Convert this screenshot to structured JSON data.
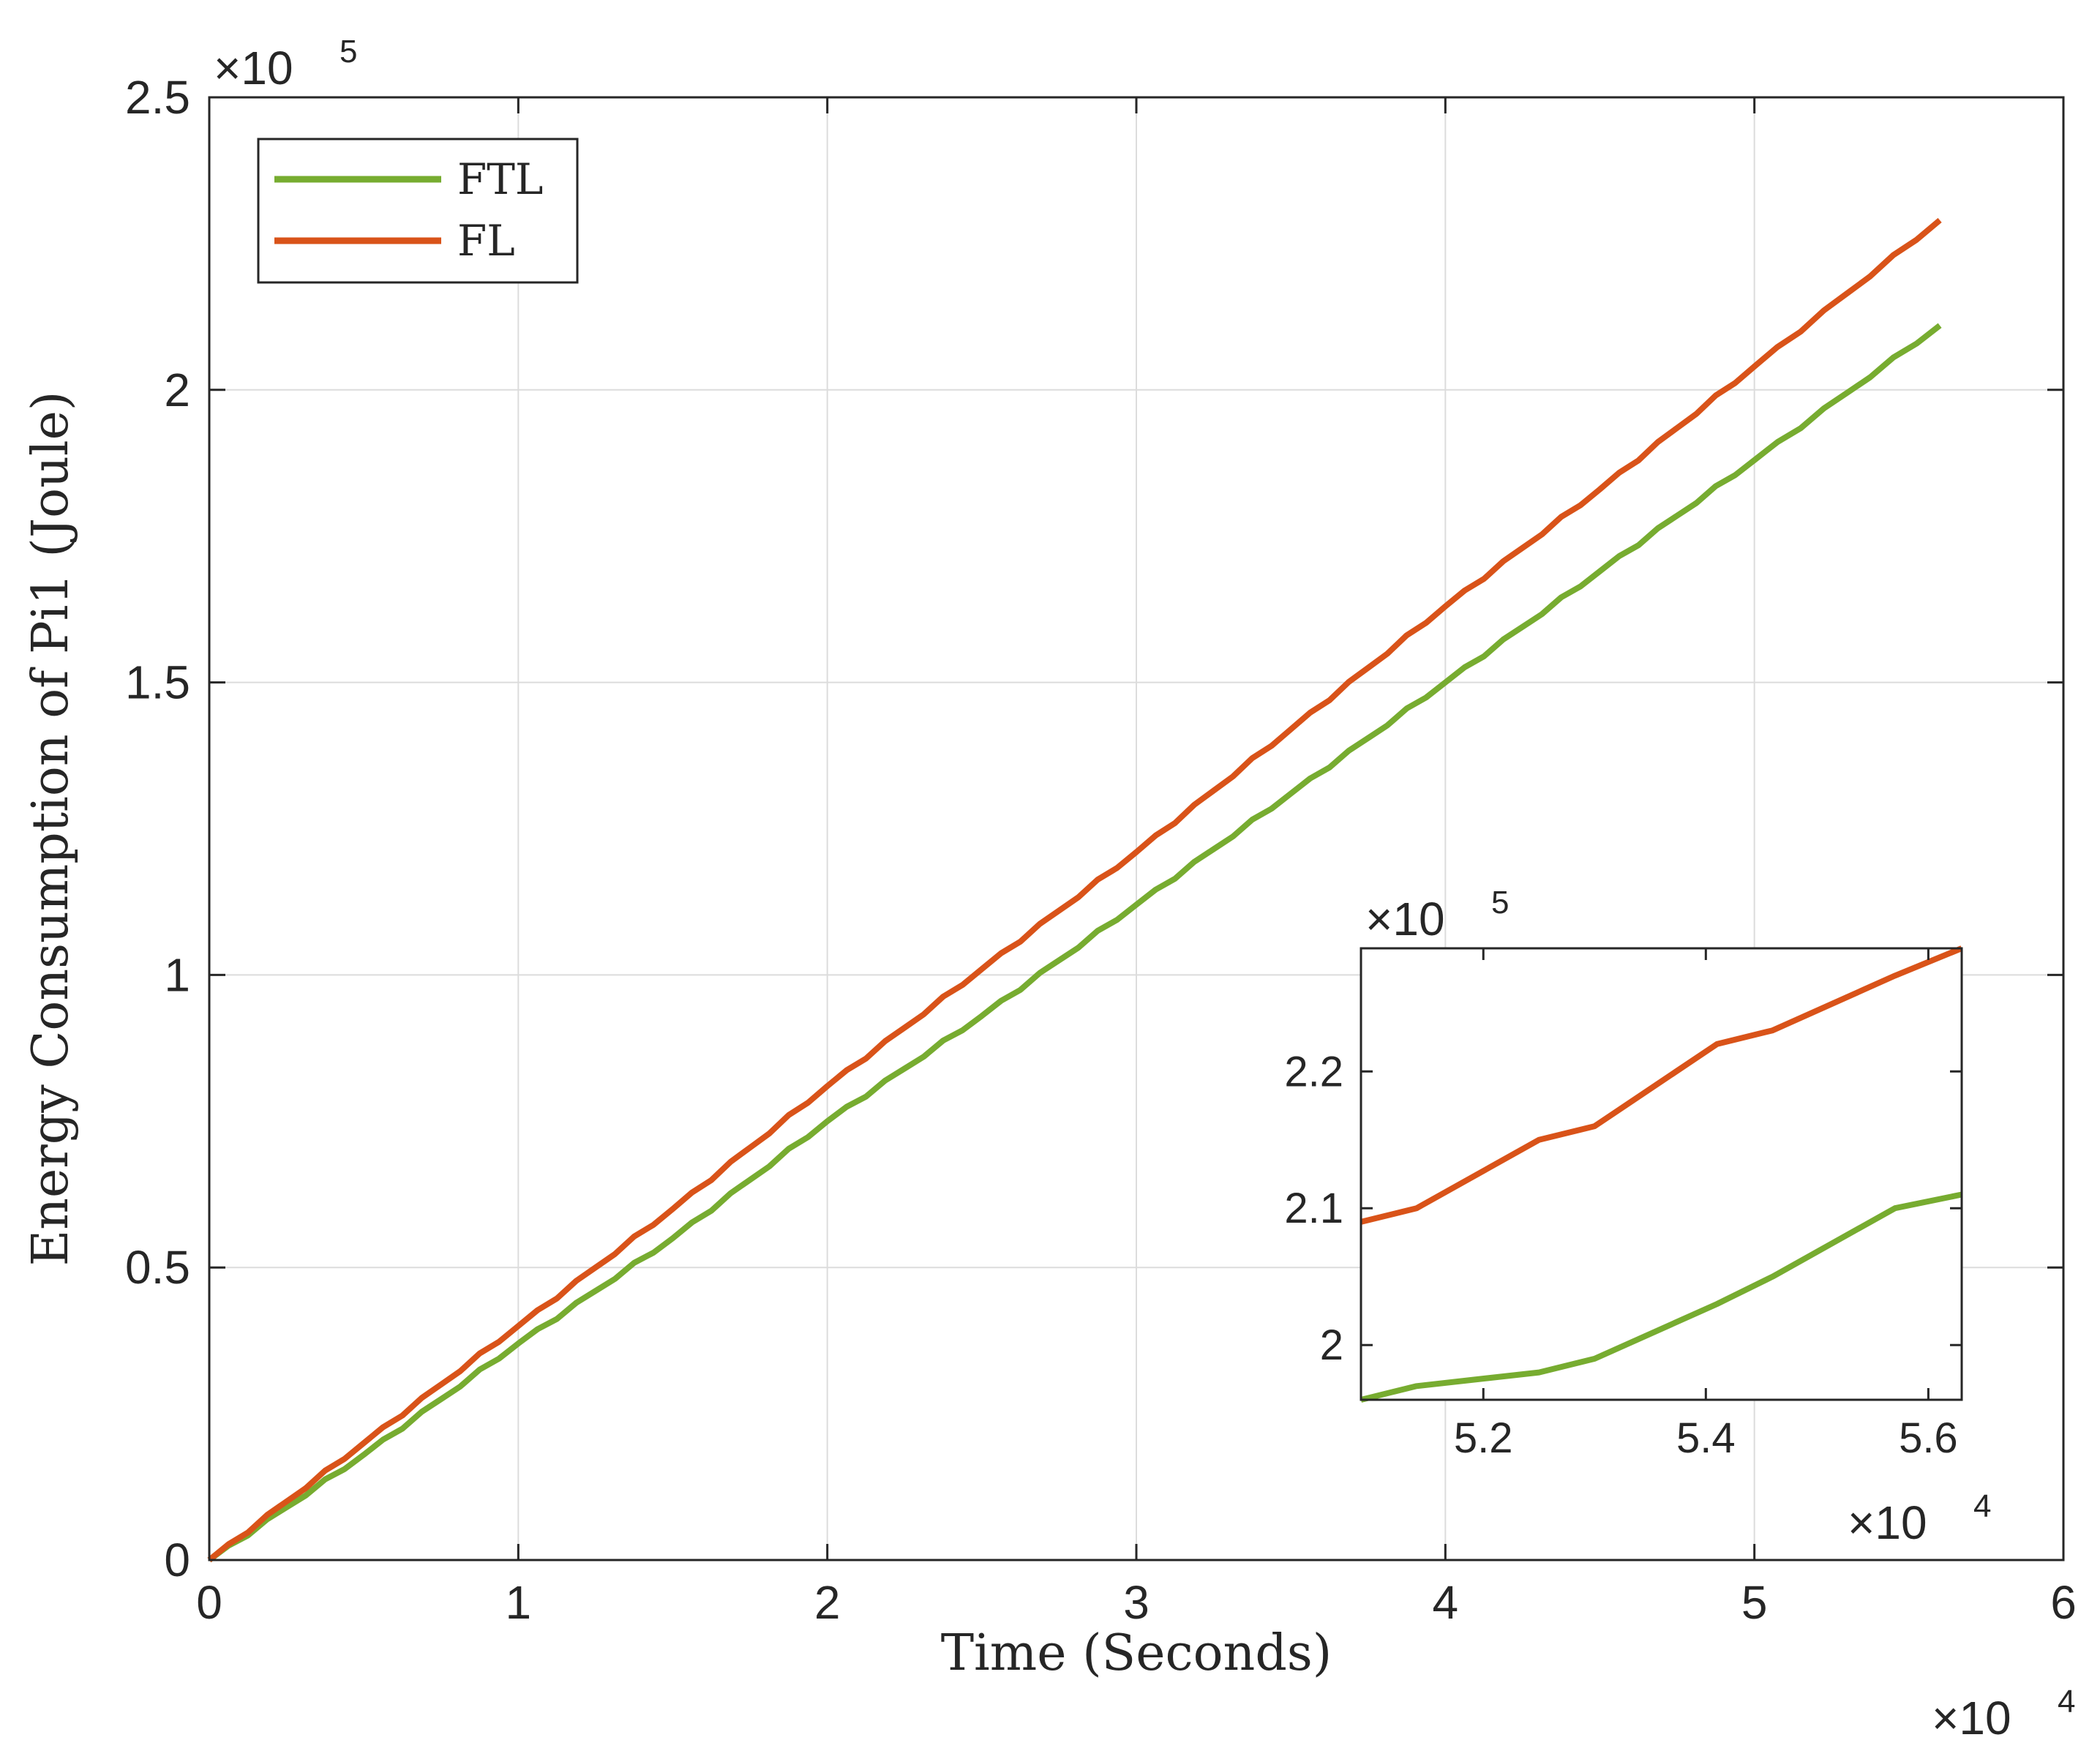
{
  "chart_data": [
    {
      "type": "line",
      "xlabel": "Time (Seconds)",
      "ylabel": "Energy Consumption of Pi1 (Joule)",
      "x_multiplier": "×10",
      "x_exponent": "4",
      "y_multiplier": "×10",
      "y_exponent": "5",
      "xlim": [
        0,
        6
      ],
      "ylim": [
        0,
        2.5
      ],
      "xticks": [
        "0",
        "1",
        "2",
        "3",
        "4",
        "5",
        "6"
      ],
      "yticks": [
        "0",
        "0.5",
        "1",
        "1.5",
        "2",
        "2.5"
      ],
      "grid": true,
      "legend_position": "top-left",
      "series": [
        {
          "name": "FTL",
          "color": "#77AC30",
          "x": [
            0,
            0.5,
            1,
            1.5,
            2,
            2.5,
            3,
            3.5,
            4,
            4.5,
            5,
            5.6
          ],
          "y": [
            0,
            0.18,
            0.37,
            0.55,
            0.75,
            0.93,
            1.12,
            1.31,
            1.5,
            1.69,
            1.88,
            2.11
          ]
        },
        {
          "name": "FL",
          "color": "#D95319",
          "x": [
            0,
            0.5,
            1,
            1.5,
            2,
            2.5,
            3,
            3.5,
            4,
            4.5,
            5,
            5.6
          ],
          "y": [
            0,
            0.2,
            0.4,
            0.6,
            0.81,
            1.01,
            1.21,
            1.42,
            1.63,
            1.83,
            2.04,
            2.29
          ]
        }
      ]
    },
    {
      "type": "line",
      "role": "inset",
      "x_multiplier": "×10",
      "x_exponent": "4",
      "y_multiplier": "×10",
      "y_exponent": "5",
      "xlim": [
        5.09,
        5.63
      ],
      "ylim": [
        1.96,
        2.29
      ],
      "xticks": [
        "5.2",
        "5.4",
        "5.6"
      ],
      "yticks": [
        "2",
        "2.1",
        "2.2"
      ],
      "grid": false,
      "series": [
        {
          "name": "FTL",
          "color": "#77AC30",
          "x": [
            5.09,
            5.14,
            5.25,
            5.3,
            5.41,
            5.46,
            5.57,
            5.63
          ],
          "y": [
            1.96,
            1.97,
            1.98,
            1.99,
            2.03,
            2.05,
            2.1,
            2.11
          ]
        },
        {
          "name": "FL",
          "color": "#D95319",
          "x": [
            5.09,
            5.14,
            5.25,
            5.3,
            5.41,
            5.46,
            5.57,
            5.63
          ],
          "y": [
            2.09,
            2.1,
            2.15,
            2.16,
            2.22,
            2.23,
            2.27,
            2.29
          ]
        }
      ]
    }
  ]
}
